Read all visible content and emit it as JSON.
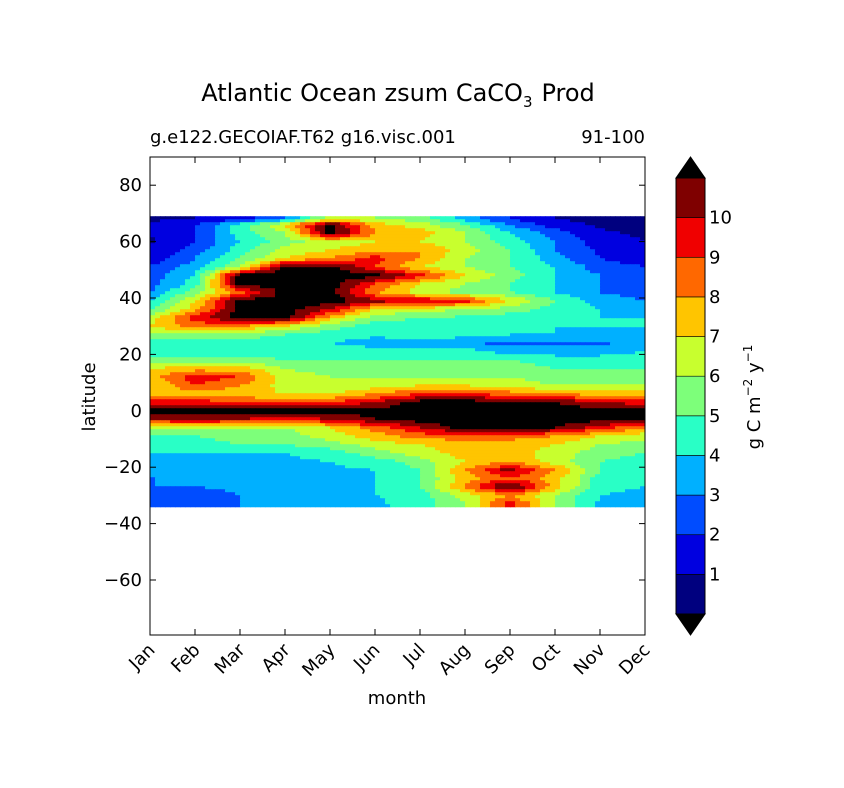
{
  "chart_data": {
    "type": "heatmap",
    "title": {
      "main": "Atlantic Ocean zsum CaCO",
      "subscript": "3",
      "suffix": "Prod"
    },
    "subtitle_left": "g.e122.GECOIAF.T62 g16.visc.001",
    "subtitle_right": "91-100",
    "xlabel": "month",
    "ylabel": "latitude",
    "x": [
      "Jan",
      "Feb",
      "Mar",
      "Apr",
      "May",
      "Jun",
      "Jul",
      "Aug",
      "Sep",
      "Oct",
      "Nov",
      "Dec"
    ],
    "yticks": [
      80,
      60,
      40,
      20,
      0,
      -20,
      -40,
      -60
    ],
    "ylim": [
      -79.5,
      90
    ],
    "data_lat_range": [
      -34,
      69
    ],
    "colorbar": {
      "label": "g C m",
      "label_exp1": "−2",
      "label_mid": " y",
      "label_exp2": "−1",
      "levels": [
        0,
        1,
        2,
        3,
        4,
        5,
        6,
        7,
        8,
        9,
        10,
        11
      ],
      "ticks": [
        1,
        2,
        3,
        4,
        5,
        6,
        7,
        8,
        9,
        10
      ],
      "colors": [
        "#00007f",
        "#0000e0",
        "#004cff",
        "#00b0ff",
        "#29ffc6",
        "#7dff7a",
        "#c8ff2e",
        "#ffc500",
        "#ff6800",
        "#f00000",
        "#7f0000"
      ],
      "under_color": "#000000",
      "over_color": "#000000"
    },
    "band_lats": [
      68,
      66,
      63,
      60,
      57,
      54,
      51,
      48,
      45,
      42,
      39,
      36,
      33,
      30,
      27,
      24,
      21,
      18,
      15,
      12,
      9,
      6,
      3,
      0,
      -3,
      -6,
      -9,
      -12,
      -15,
      -18,
      -21,
      -24,
      -27,
      -30,
      -33
    ],
    "values": [
      [
        0.8,
        1.0,
        1.5,
        3.0,
        6.5,
        6.0,
        5.5,
        3.5,
        2.0,
        1.0,
        0.6,
        0.5
      ],
      [
        1.2,
        2.0,
        4.5,
        7.0,
        11.5,
        7.5,
        6.5,
        5.0,
        3.0,
        1.5,
        0.8,
        0.6
      ],
      [
        1.0,
        2.0,
        4.5,
        6.0,
        11.5,
        8.0,
        7.5,
        6.0,
        4.0,
        2.5,
        1.2,
        0.8
      ],
      [
        0.9,
        2.0,
        4.0,
        5.5,
        6.5,
        7.0,
        7.0,
        6.0,
        4.5,
        3.0,
        1.5,
        1.0
      ],
      [
        1.0,
        2.5,
        4.5,
        6.5,
        7.0,
        7.5,
        8.0,
        6.5,
        5.0,
        3.0,
        1.8,
        1.2
      ],
      [
        1.5,
        3.0,
        5.0,
        7.0,
        8.0,
        9.5,
        8.0,
        6.0,
        5.0,
        3.5,
        2.0,
        1.5
      ],
      [
        2.0,
        3.5,
        6.0,
        11.5,
        11.5,
        9.0,
        7.0,
        6.0,
        5.0,
        4.0,
        2.5,
        2.0
      ],
      [
        2.5,
        4.0,
        11.5,
        11.5,
        11.5,
        11.5,
        9.5,
        7.0,
        5.5,
        4.0,
        3.0,
        2.5
      ],
      [
        2.5,
        4.5,
        11.5,
        11.5,
        11.5,
        9.0,
        7.0,
        6.0,
        5.0,
        4.0,
        3.0,
        2.5
      ],
      [
        3.0,
        5.5,
        8.5,
        11.5,
        11.5,
        8.0,
        6.5,
        5.5,
        5.0,
        4.0,
        3.0,
        2.5
      ],
      [
        4.0,
        7.0,
        11.5,
        11.5,
        11.5,
        10.5,
        10.0,
        9.5,
        7.0,
        5.0,
        3.5,
        3.0
      ],
      [
        5.0,
        7.5,
        11.5,
        11.5,
        10.0,
        7.0,
        6.5,
        6.0,
        5.5,
        4.5,
        4.0,
        3.5
      ],
      [
        6.5,
        9.5,
        11.5,
        11.5,
        7.5,
        5.5,
        5.0,
        4.8,
        4.5,
        4.5,
        4.0,
        4.0
      ],
      [
        7.0,
        8.5,
        8.0,
        7.0,
        5.5,
        4.5,
        4.5,
        4.5,
        4.0,
        4.0,
        4.0,
        4.0
      ],
      [
        5.5,
        6.0,
        5.5,
        5.0,
        4.5,
        4.2,
        4.5,
        4.5,
        4.0,
        4.0,
        3.5,
        4.0
      ],
      [
        4.5,
        4.5,
        4.5,
        4.5,
        4.0,
        3.5,
        3.5,
        3.0,
        2.8,
        2.8,
        2.8,
        3.5
      ],
      [
        4.5,
        4.5,
        4.5,
        4.5,
        4.5,
        4.5,
        4.5,
        4.5,
        3.5,
        3.5,
        3.5,
        4.0
      ],
      [
        5.5,
        5.5,
        5.5,
        5.0,
        5.0,
        5.0,
        5.0,
        5.0,
        5.0,
        4.5,
        4.5,
        5.0
      ],
      [
        7.0,
        7.5,
        7.5,
        6.0,
        5.5,
        5.5,
        5.5,
        5.5,
        5.5,
        5.0,
        5.0,
        5.0
      ],
      [
        7.5,
        9.5,
        9.0,
        6.5,
        6.0,
        6.0,
        6.0,
        6.0,
        6.0,
        5.5,
        5.5,
        5.5
      ],
      [
        7.0,
        9.0,
        8.0,
        6.5,
        6.0,
        6.5,
        7.0,
        7.0,
        6.5,
        6.0,
        6.0,
        6.0
      ],
      [
        7.5,
        7.5,
        7.5,
        7.0,
        7.0,
        8.0,
        9.0,
        9.0,
        8.5,
        8.0,
        7.5,
        7.5
      ],
      [
        9.5,
        9.5,
        9.0,
        8.5,
        9.0,
        10.0,
        11.5,
        11.5,
        11.5,
        11.0,
        10.0,
        9.5
      ],
      [
        11.5,
        11.5,
        11.5,
        11.5,
        11.5,
        11.5,
        11.5,
        11.5,
        11.5,
        11.5,
        11.5,
        11.5
      ],
      [
        10.0,
        10.5,
        10.0,
        9.5,
        10.0,
        11.0,
        11.5,
        11.5,
        11.5,
        11.5,
        11.5,
        11.5
      ],
      [
        6.0,
        6.0,
        6.0,
        6.0,
        7.0,
        8.5,
        10.0,
        11.5,
        11.5,
        11.0,
        9.5,
        8.0
      ],
      [
        5.0,
        5.0,
        5.5,
        5.5,
        6.5,
        7.5,
        8.5,
        8.5,
        8.5,
        8.0,
        7.0,
        6.5
      ],
      [
        4.5,
        4.5,
        5.0,
        5.0,
        5.5,
        6.5,
        7.0,
        7.5,
        7.5,
        7.0,
        6.0,
        5.5
      ],
      [
        4.0,
        4.0,
        4.0,
        4.0,
        4.5,
        5.5,
        6.5,
        7.5,
        7.5,
        6.5,
        5.5,
        5.0
      ],
      [
        3.8,
        3.8,
        3.8,
        3.8,
        4.0,
        4.5,
        5.5,
        7.0,
        8.0,
        6.5,
        5.0,
        4.5
      ],
      [
        3.5,
        3.5,
        3.5,
        3.8,
        3.8,
        4.0,
        5.0,
        8.0,
        10.5,
        8.0,
        5.0,
        4.5
      ],
      [
        3.0,
        3.0,
        3.0,
        3.5,
        3.5,
        4.0,
        5.0,
        7.5,
        9.0,
        7.5,
        4.5,
        4.0
      ],
      [
        3.0,
        3.0,
        3.2,
        3.5,
        3.5,
        4.0,
        5.0,
        8.0,
        11.5,
        7.5,
        4.5,
        4.0
      ],
      [
        2.5,
        2.5,
        3.0,
        3.5,
        3.5,
        4.0,
        4.5,
        6.5,
        8.0,
        6.0,
        4.0,
        3.5
      ],
      [
        2.5,
        2.5,
        3.0,
        3.2,
        3.5,
        3.8,
        4.5,
        6.0,
        9.5,
        6.0,
        3.8,
        3.2
      ]
    ]
  }
}
